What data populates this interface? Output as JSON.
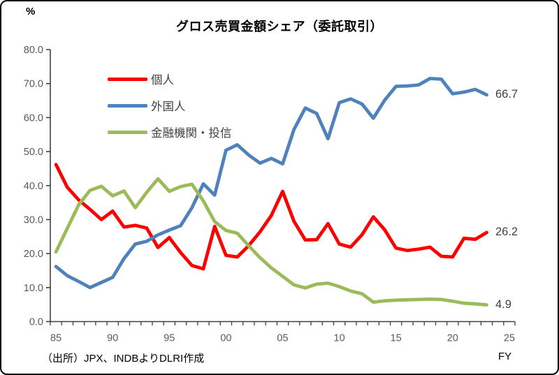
{
  "chart": {
    "title": "グロス売買金額シェア（委託取引）",
    "percent_label": "%",
    "fy_label": "FY",
    "source_note": "（出所）JPX、INDBよりDLRI作成"
  },
  "chart_data": {
    "type": "line",
    "title": "グロス売買金額シェア（委託取引）",
    "ylabel": "%",
    "xlabel": "FY",
    "ylim": [
      0,
      80
    ],
    "ytick_step": 10,
    "ytick_decimals": 1,
    "grid": false,
    "legend_position": "upper-left-inside",
    "axis_color": "#3f3f3f",
    "tick_label_color": "#595959",
    "x_first_tick_year": 1985,
    "x_last_tick_year": 2026,
    "xtick_labeled_years": [
      1985,
      1990,
      1995,
      2000,
      2005,
      2010,
      2015,
      2020,
      2025
    ],
    "xtick_labels": [
      "85",
      "90",
      "95",
      "00",
      "05",
      "10",
      "15",
      "20",
      "25"
    ],
    "years": [
      1985,
      1986,
      1987,
      1988,
      1989,
      1990,
      1991,
      1992,
      1993,
      1994,
      1995,
      1996,
      1997,
      1998,
      1999,
      2000,
      2001,
      2002,
      2003,
      2004,
      2005,
      2006,
      2007,
      2008,
      2009,
      2010,
      2011,
      2012,
      2013,
      2014,
      2015,
      2016,
      2017,
      2018,
      2019,
      2020,
      2021,
      2022,
      2023
    ],
    "series": [
      {
        "name": "個人",
        "color": "#FF0000",
        "values": [
          46.2,
          39.5,
          35.8,
          33.0,
          30.0,
          32.5,
          27.8,
          28.3,
          27.5,
          21.8,
          24.7,
          20.3,
          16.5,
          15.5,
          28.0,
          19.5,
          19.0,
          22.3,
          26.4,
          31.2,
          38.3,
          29.5,
          24.0,
          24.1,
          28.8,
          22.8,
          21.9,
          25.5,
          30.8,
          27.0,
          21.6,
          20.9,
          21.3,
          21.9,
          19.2,
          19.0,
          24.5,
          24.2,
          26.2
        ]
      },
      {
        "name": "外国人",
        "color": "#4F81BD",
        "values": [
          16.2,
          13.5,
          11.8,
          10.0,
          11.5,
          13.0,
          18.5,
          22.8,
          23.6,
          25.5,
          26.9,
          28.2,
          33.5,
          40.5,
          37.2,
          50.4,
          52.0,
          49.0,
          46.6,
          48.0,
          46.4,
          56.5,
          62.8,
          61.2,
          53.8,
          64.4,
          65.5,
          64.0,
          59.8,
          65.1,
          69.2,
          69.3,
          69.6,
          71.5,
          71.3,
          67.0,
          67.5,
          68.3,
          66.7
        ]
      },
      {
        "name": "金融機関・投信",
        "color": "#9BBB59",
        "values": [
          20.5,
          27.4,
          34.3,
          38.6,
          39.8,
          37.0,
          38.4,
          33.5,
          38.0,
          42.0,
          38.3,
          39.7,
          40.4,
          35.5,
          29.4,
          26.8,
          26.0,
          22.3,
          18.8,
          15.8,
          13.3,
          10.8,
          9.9,
          11.0,
          11.3,
          10.3,
          9.0,
          8.2,
          5.7,
          6.1,
          6.3,
          6.4,
          6.5,
          6.6,
          6.5,
          6.0,
          5.4,
          5.2,
          4.9
        ]
      }
    ],
    "end_labels": [
      {
        "series": "外国人",
        "text": "66.7",
        "value": 66.7
      },
      {
        "series": "個人",
        "text": "26.2",
        "value": 26.2
      },
      {
        "series": "金融機関・投信",
        "text": "4.9",
        "value": 4.9
      }
    ]
  }
}
